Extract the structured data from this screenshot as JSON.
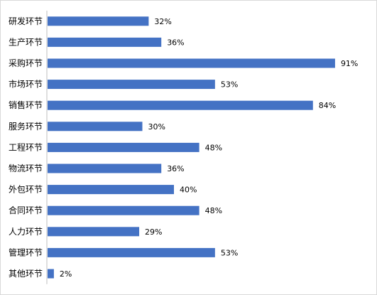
{
  "chart_data": {
    "type": "bar",
    "orientation": "horizontal",
    "categories": [
      "研发环节",
      "生产环节",
      "采购环节",
      "市场环节",
      "销售环节",
      "服务环节",
      "工程环节",
      "物流环节",
      "外包环节",
      "合同环节",
      "人力环节",
      "管理环节",
      "其他环节"
    ],
    "values": [
      32,
      36,
      91,
      53,
      84,
      30,
      48,
      36,
      40,
      48,
      29,
      53,
      2
    ],
    "value_labels": [
      "32%",
      "36%",
      "91%",
      "53%",
      "84%",
      "30%",
      "48%",
      "36%",
      "40%",
      "48%",
      "29%",
      "53%",
      "2%"
    ],
    "title": "",
    "xlabel": "",
    "ylabel": "",
    "xlim": [
      0,
      100
    ],
    "grid": false,
    "legend": "none",
    "colors": {
      "bar": "#4472C4",
      "axis": "#bfbfbf",
      "border": "#d9d9d9"
    }
  }
}
